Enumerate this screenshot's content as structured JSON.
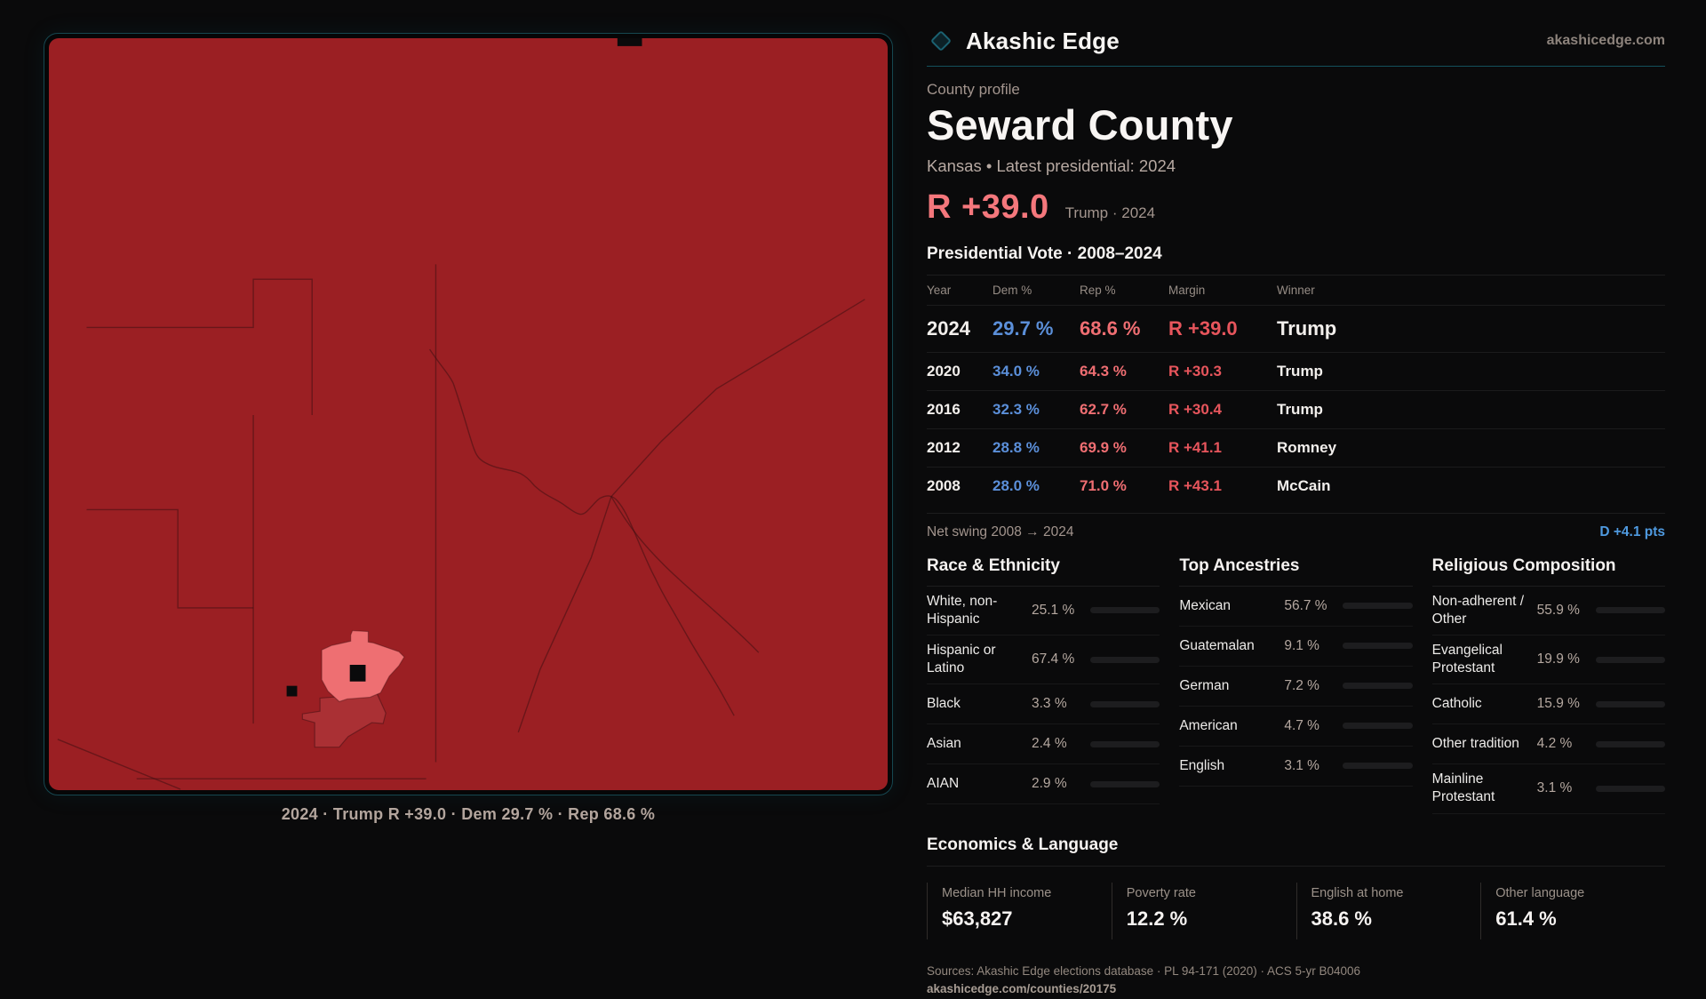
{
  "brand": {
    "name": "Akashic Edge",
    "domain": "akashicedge.com"
  },
  "header": {
    "eyebrow": "County profile",
    "title": "Seward County",
    "subtitle": "Kansas • Latest presidential: 2024"
  },
  "headline": {
    "margin": "R +39.0",
    "context": "Trump · 2024"
  },
  "vote_table": {
    "title": "Presidential Vote · 2008–2024",
    "columns": [
      "Year",
      "Dem %",
      "Rep %",
      "Margin",
      "Winner"
    ],
    "rows": [
      {
        "year": "2024",
        "dem": "29.7 %",
        "rep": "68.6 %",
        "margin": "R +39.0",
        "winner": "Trump",
        "big": true
      },
      {
        "year": "2020",
        "dem": "34.0 %",
        "rep": "64.3 %",
        "margin": "R +30.3",
        "winner": "Trump",
        "big": false
      },
      {
        "year": "2016",
        "dem": "32.3 %",
        "rep": "62.7 %",
        "margin": "R +30.4",
        "winner": "Trump",
        "big": false
      },
      {
        "year": "2012",
        "dem": "28.8 %",
        "rep": "69.9 %",
        "margin": "R +41.1",
        "winner": "Romney",
        "big": false
      },
      {
        "year": "2008",
        "dem": "28.0 %",
        "rep": "71.0 %",
        "margin": "R +43.1",
        "winner": "McCain",
        "big": false
      }
    ]
  },
  "net_swing": {
    "label": "Net swing 2008 → 2024",
    "value": "D +4.1 pts"
  },
  "race": {
    "title": "Race & Ethnicity",
    "rows": [
      {
        "label": "White, non-Hispanic",
        "value": "25.1 %",
        "pct": 25.1,
        "color": "#a9bdd6"
      },
      {
        "label": "Hispanic or Latino",
        "value": "67.4 %",
        "pct": 67.4,
        "color": "#e39a17"
      },
      {
        "label": "Black",
        "value": "3.3 %",
        "pct": 3.3,
        "color": "#7e5fe0"
      },
      {
        "label": "Asian",
        "value": "2.4 %",
        "pct": 2.4,
        "color": "#2fae85"
      },
      {
        "label": "AIAN",
        "value": "2.9 %",
        "pct": 2.9,
        "color": "#d97c15"
      }
    ]
  },
  "ancestries": {
    "title": "Top Ancestries",
    "rows": [
      {
        "label": "Mexican",
        "value": "56.7 %",
        "pct": 56.7,
        "color": "#e39a17"
      },
      {
        "label": "Guatemalan",
        "value": "9.1 %",
        "pct": 9.1,
        "color": "#e3a51c"
      },
      {
        "label": "German",
        "value": "7.2 %",
        "pct": 7.2,
        "color": "#a9bdd6"
      },
      {
        "label": "American",
        "value": "4.7 %",
        "pct": 4.7,
        "color": "#a9bdd6"
      },
      {
        "label": "English",
        "value": "3.1 %",
        "pct": 3.1,
        "color": "#a9bdd6"
      }
    ]
  },
  "religion": {
    "title": "Religious Composition",
    "rows": [
      {
        "label": "Non-adherent / Other",
        "value": "55.9 %",
        "pct": 55.9,
        "color": "#76849b"
      },
      {
        "label": "Evangelical Protestant",
        "value": "19.9 %",
        "pct": 19.9,
        "color": "#e86e74"
      },
      {
        "label": "Catholic",
        "value": "15.9 %",
        "pct": 15.9,
        "color": "#ddab2b"
      },
      {
        "label": "Other tradition",
        "value": "4.2 %",
        "pct": 4.2,
        "color": "#8f979f"
      },
      {
        "label": "Mainline Protestant",
        "value": "3.1 %",
        "pct": 3.1,
        "color": "#4e8ed9"
      }
    ]
  },
  "economics": {
    "title": "Economics & Language",
    "stats": [
      {
        "label": "Median HH income",
        "value": "$63,827"
      },
      {
        "label": "Poverty rate",
        "value": "12.2 %"
      },
      {
        "label": "English at home",
        "value": "38.6 %"
      },
      {
        "label": "Other language",
        "value": "61.4 %"
      }
    ]
  },
  "map": {
    "caption": "2024 · Trump R +39.0 · Dem 29.7 % · Rep 68.6 %",
    "colors": {
      "county_fill": "#9b1f23",
      "city_precinct": "#ee6f72",
      "secondary_precinct": "#aa3034",
      "frame_teal": "#164750"
    }
  },
  "footer": {
    "sources": "Sources: Akashic Edge elections database · PL 94-171 (2020) · ACS 5-yr B04006",
    "permalink": "akashicedge.com/counties/20175"
  }
}
